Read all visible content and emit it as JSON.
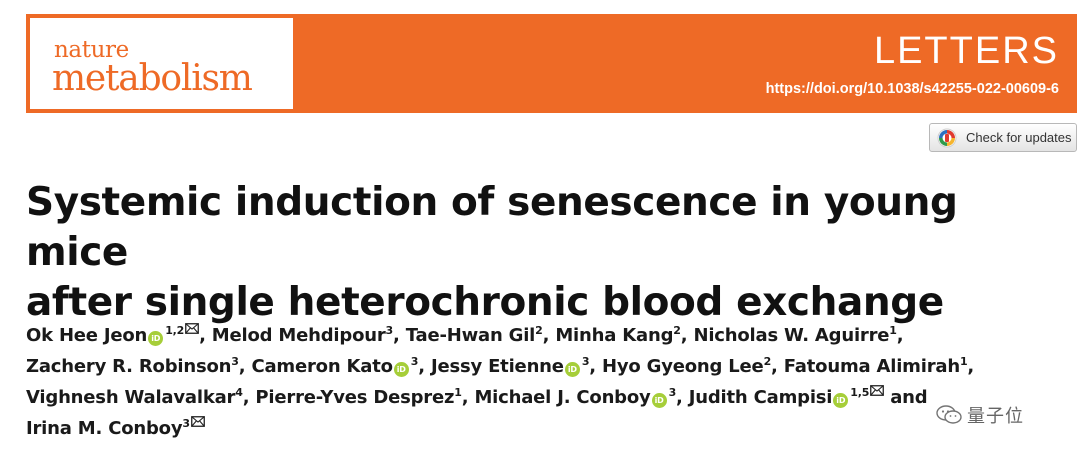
{
  "journal": {
    "name_top": "nature",
    "name_bottom": "metabolism",
    "article_type": "LETTERS",
    "doi": "https://doi.org/10.1038/s42255-022-00609-6",
    "brand_color": "#ee6a26"
  },
  "check_updates": {
    "label": "Check for updates",
    "icon": "check-for-updates-icon"
  },
  "title": {
    "line1": "Systemic induction of senescence in young mice",
    "line2": "after single heterochronic blood exchange"
  },
  "authors": [
    {
      "name": "Ok Hee Jeon",
      "orcid": true,
      "sup": "1,2",
      "corresponding": true,
      "sep": ", "
    },
    {
      "name": "Melod Mehdipour",
      "orcid": false,
      "sup": "3",
      "corresponding": false,
      "sep": ", "
    },
    {
      "name": "Tae-Hwan Gil",
      "orcid": false,
      "sup": "2",
      "corresponding": false,
      "sep": ", "
    },
    {
      "name": "Minha Kang",
      "orcid": false,
      "sup": "2",
      "corresponding": false,
      "sep": ", "
    },
    {
      "name": "Nicholas W. Aguirre",
      "orcid": false,
      "sup": "1",
      "corresponding": false,
      "sep": ","
    },
    {
      "name": "Zachery R. Robinson",
      "orcid": false,
      "sup": "3",
      "corresponding": false,
      "sep": ", "
    },
    {
      "name": "Cameron Kato",
      "orcid": true,
      "sup": "3",
      "corresponding": false,
      "sep": ", "
    },
    {
      "name": "Jessy Etienne",
      "orcid": true,
      "sup": "3",
      "corresponding": false,
      "sep": ", "
    },
    {
      "name": "Hyo Gyeong Lee",
      "orcid": false,
      "sup": "2",
      "corresponding": false,
      "sep": ", "
    },
    {
      "name": "Fatouma Alimirah",
      "orcid": false,
      "sup": "1",
      "corresponding": false,
      "sep": ","
    },
    {
      "name": "Vighnesh Walavalkar",
      "orcid": false,
      "sup": "4",
      "corresponding": false,
      "sep": ", "
    },
    {
      "name": "Pierre-Yves Desprez",
      "orcid": false,
      "sup": "1",
      "corresponding": false,
      "sep": ", "
    },
    {
      "name": "Michael J. Conboy",
      "orcid": true,
      "sup": "3",
      "corresponding": false,
      "sep": ", "
    },
    {
      "name": "Judith Campisi",
      "orcid": true,
      "sup": "1,5",
      "corresponding": true,
      "sep": " and"
    },
    {
      "name": "Irina M. Conboy",
      "orcid": false,
      "sup": "3",
      "corresponding": true,
      "sep": ""
    }
  ],
  "author_lines": [
    [
      0,
      1,
      2,
      3,
      4
    ],
    [
      5,
      6,
      7,
      8,
      9
    ],
    [
      10,
      11,
      12,
      13
    ],
    [
      14
    ]
  ],
  "orcid_badge": "iD",
  "watermark": {
    "text": "量子位",
    "icon": "wechat-icon"
  }
}
